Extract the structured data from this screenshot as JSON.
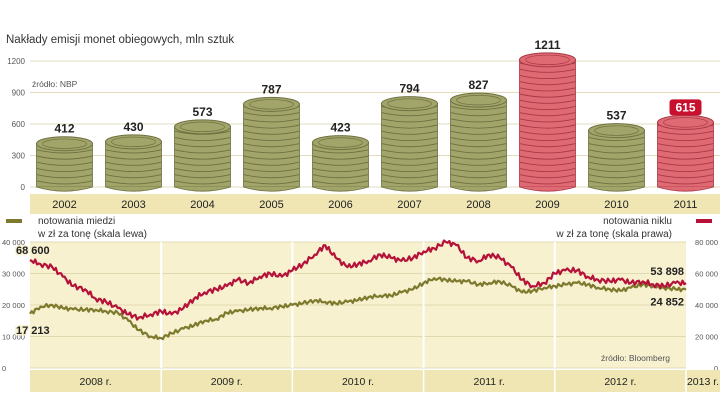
{
  "chart_data": [
    {
      "type": "bar",
      "title": "Nakłady emisji monet obiegowych, mln sztuk",
      "source": "źródło: NBP",
      "categories": [
        "2002",
        "2003",
        "2004",
        "2005",
        "2006",
        "2007",
        "2008",
        "2009",
        "2010",
        "2011"
      ],
      "values": [
        412,
        430,
        573,
        787,
        423,
        794,
        827,
        1211,
        537,
        615
      ],
      "value_labels": [
        "412",
        "430",
        "573",
        "787",
        "423",
        "794",
        "827",
        "1211",
        "537",
        "615"
      ],
      "highlight": [
        "2009",
        "2011"
      ],
      "yticks": [
        "0",
        "300",
        "600",
        "900",
        "1200"
      ],
      "ylim": [
        0,
        1200
      ],
      "grid": true,
      "colors": {
        "coin": "#a2a56a",
        "coin_dark": "#6f7040",
        "coin_highlight": "#e06a74",
        "coin_highlight_dark": "#a83946",
        "label_highlight_bg": "#c8102e"
      }
    },
    {
      "type": "line",
      "source": "źródło: Bloomberg",
      "x_labels": [
        "2008 r.",
        "2009 r.",
        "2010 r.",
        "2011 r.",
        "2012 r.",
        "2013 r."
      ],
      "x_range": [
        "2008-01",
        "2013-01"
      ],
      "left_axis": {
        "ticks": [
          "0",
          "10 000",
          "20 000",
          "30 000",
          "40 000"
        ],
        "ylim": [
          0,
          40000
        ]
      },
      "right_axis": {
        "ticks": [
          "0",
          "20 000",
          "40 000",
          "60 000",
          "80 000"
        ],
        "ylim": [
          0,
          80000
        ]
      },
      "series": [
        {
          "name": "notowania miedzi w zł za tonę (skala lewa)",
          "legend": [
            "notowania miedzi",
            "w zł za tonę (skala lewa)"
          ],
          "axis": "left",
          "color": "#7d7a2e",
          "x": [
            2008.0,
            2008.08,
            2008.17,
            2008.25,
            2008.33,
            2008.42,
            2008.5,
            2008.58,
            2008.67,
            2008.75,
            2008.83,
            2008.92,
            2009.0,
            2009.08,
            2009.17,
            2009.25,
            2009.33,
            2009.42,
            2009.5,
            2009.58,
            2009.67,
            2009.75,
            2009.83,
            2009.92,
            2010.0,
            2010.08,
            2010.17,
            2010.25,
            2010.33,
            2010.42,
            2010.5,
            2010.58,
            2010.67,
            2010.75,
            2010.83,
            2010.92,
            2011.0,
            2011.08,
            2011.17,
            2011.25,
            2011.33,
            2011.42,
            2011.5,
            2011.58,
            2011.67,
            2011.75,
            2011.83,
            2011.92,
            2012.0,
            2012.08,
            2012.17,
            2012.25,
            2012.33,
            2012.42,
            2012.5,
            2012.58,
            2012.67,
            2012.75,
            2012.83,
            2012.92,
            2013.0
          ],
          "y": [
            17213,
            19500,
            20000,
            19000,
            18600,
            18500,
            18500,
            18000,
            17500,
            15000,
            12000,
            10000,
            9500,
            11000,
            12500,
            13500,
            15000,
            15500,
            17500,
            18000,
            18500,
            19000,
            19000,
            19500,
            20000,
            20500,
            21500,
            21000,
            20500,
            21000,
            21500,
            22500,
            23000,
            23000,
            24000,
            25000,
            27000,
            28500,
            28000,
            27500,
            27500,
            26500,
            27000,
            27500,
            26000,
            24000,
            24500,
            25500,
            26000,
            26500,
            27000,
            26500,
            25500,
            25000,
            24500,
            25500,
            26500,
            26000,
            25500,
            25000,
            24852
          ],
          "end_labels": [
            "17 213",
            "24 852"
          ]
        },
        {
          "name": "notowania niklu w zł za tonę (skala prawa)",
          "legend": [
            "notowania niklu",
            "w zł za tonę (skala prawa)"
          ],
          "axis": "right",
          "color": "#b5123a",
          "x": [
            2008.0,
            2008.08,
            2008.17,
            2008.25,
            2008.33,
            2008.42,
            2008.5,
            2008.58,
            2008.67,
            2008.75,
            2008.83,
            2008.92,
            2009.0,
            2009.08,
            2009.17,
            2009.25,
            2009.33,
            2009.42,
            2009.5,
            2009.58,
            2009.67,
            2009.75,
            2009.83,
            2009.92,
            2010.0,
            2010.08,
            2010.17,
            2010.25,
            2010.33,
            2010.42,
            2010.5,
            2010.58,
            2010.67,
            2010.75,
            2010.83,
            2010.92,
            2011.0,
            2011.08,
            2011.17,
            2011.25,
            2011.33,
            2011.42,
            2011.5,
            2011.58,
            2011.67,
            2011.75,
            2011.83,
            2011.92,
            2012.0,
            2012.08,
            2012.17,
            2012.25,
            2012.33,
            2012.42,
            2012.5,
            2012.58,
            2012.67,
            2012.75,
            2012.83,
            2012.92,
            2013.0
          ],
          "y": [
            68600,
            66000,
            64000,
            58000,
            52000,
            50000,
            44000,
            42000,
            38000,
            34000,
            32000,
            34000,
            36000,
            34000,
            38000,
            44000,
            48000,
            50000,
            52000,
            56000,
            54000,
            58000,
            60000,
            58000,
            62000,
            66000,
            72000,
            78000,
            70000,
            64000,
            66000,
            68000,
            72000,
            70000,
            68000,
            70000,
            74000,
            76000,
            80000,
            78000,
            70000,
            68000,
            72000,
            70000,
            64000,
            56000,
            52000,
            54000,
            60000,
            62000,
            62000,
            58000,
            56000,
            55000,
            56000,
            54000,
            55000,
            53000,
            52000,
            54000,
            53898
          ],
          "end_labels": [
            "68 600",
            "53 898"
          ]
        }
      ],
      "colors": {
        "plot_bg": "#f7f1cf",
        "band_bg": "#efe6b4"
      }
    }
  ]
}
